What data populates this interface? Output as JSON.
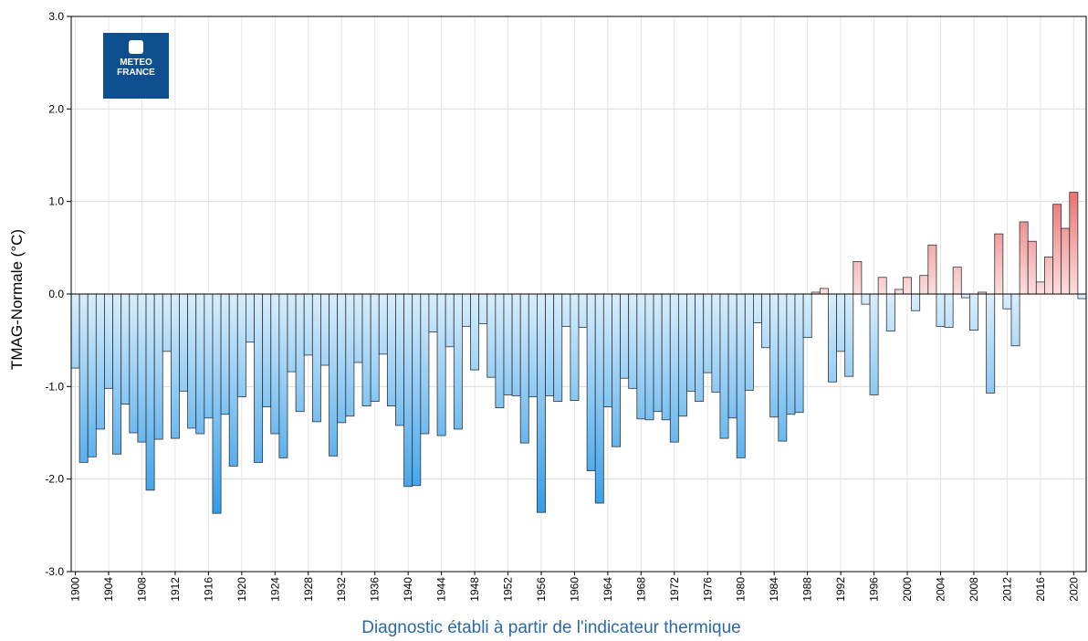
{
  "chart_data": {
    "type": "bar",
    "y_label": "TMAG-Normale (°C)",
    "x": [
      1900,
      1901,
      1902,
      1903,
      1904,
      1905,
      1906,
      1907,
      1908,
      1909,
      1910,
      1911,
      1912,
      1913,
      1914,
      1915,
      1916,
      1917,
      1918,
      1919,
      1920,
      1921,
      1922,
      1923,
      1924,
      1925,
      1926,
      1927,
      1928,
      1929,
      1930,
      1931,
      1932,
      1933,
      1934,
      1935,
      1936,
      1937,
      1938,
      1939,
      1940,
      1941,
      1942,
      1943,
      1944,
      1945,
      1946,
      1947,
      1948,
      1949,
      1950,
      1951,
      1952,
      1953,
      1954,
      1955,
      1956,
      1957,
      1958,
      1959,
      1960,
      1961,
      1962,
      1963,
      1964,
      1965,
      1966,
      1967,
      1968,
      1969,
      1970,
      1971,
      1972,
      1973,
      1974,
      1975,
      1976,
      1977,
      1978,
      1979,
      1980,
      1981,
      1982,
      1983,
      1984,
      1985,
      1986,
      1987,
      1988,
      1989,
      1990,
      1991,
      1992,
      1993,
      1994,
      1995,
      1996,
      1997,
      1998,
      1999,
      2000,
      2001,
      2002,
      2003,
      2004,
      2005,
      2006,
      2007,
      2008,
      2009,
      2010,
      2011,
      2012,
      2013,
      2014,
      2015,
      2016,
      2017,
      2018,
      2019,
      2020,
      2021
    ],
    "values": [
      -0.8,
      -1.82,
      -1.76,
      -1.46,
      -1.02,
      -1.73,
      -1.19,
      -1.5,
      -1.6,
      -2.12,
      -1.57,
      -0.62,
      -1.56,
      -1.05,
      -1.45,
      -1.51,
      -1.34,
      -2.37,
      -1.3,
      -1.86,
      -1.11,
      -0.52,
      -1.82,
      -1.22,
      -1.51,
      -1.77,
      -0.84,
      -1.27,
      -0.66,
      -1.38,
      -0.77,
      -1.75,
      -1.39,
      -1.32,
      -0.74,
      -1.21,
      -1.16,
      -0.65,
      -1.21,
      -1.42,
      -2.08,
      -2.07,
      -1.51,
      -0.41,
      -1.53,
      -0.57,
      -1.46,
      -0.35,
      -0.82,
      -0.32,
      -0.9,
      -1.23,
      -1.09,
      -1.1,
      -1.61,
      -1.11,
      -2.36,
      -1.1,
      -1.16,
      -0.35,
      -1.15,
      -0.36,
      -1.91,
      -2.26,
      -1.22,
      -1.65,
      -0.91,
      -1.02,
      -1.35,
      -1.36,
      -1.27,
      -1.36,
      -1.6,
      -1.32,
      -1.05,
      -1.16,
      -0.85,
      -1.06,
      -1.56,
      -1.34,
      -1.77,
      -1.04,
      -0.31,
      -0.58,
      -1.33,
      -1.59,
      -1.3,
      -1.28,
      -0.47,
      0.02,
      0.06,
      -0.95,
      -0.62,
      -0.89,
      0.35,
      -0.11,
      -1.09,
      0.18,
      -0.4,
      0.05,
      0.18,
      -0.18,
      0.2,
      0.53,
      -0.35,
      -0.36,
      0.29,
      -0.04,
      -0.39,
      0.02,
      -1.07,
      0.65,
      -0.16,
      -0.56,
      0.78,
      0.57,
      0.13,
      0.4,
      0.97,
      0.71,
      1.1,
      -0.05
    ],
    "colors": {
      "negative": [
        "#d9eefc",
        "#2f9cea"
      ],
      "positive": [
        "#fbdede",
        "#e86a6a"
      ]
    },
    "xlim": [
      1899.5,
      2021.5
    ],
    "xticks": [
      1900,
      1904,
      1908,
      1912,
      1916,
      1920,
      1924,
      1928,
      1932,
      1936,
      1940,
      1944,
      1948,
      1952,
      1956,
      1960,
      1964,
      1968,
      1972,
      1976,
      1980,
      1984,
      1988,
      1992,
      1996,
      2000,
      2004,
      2008,
      2012,
      2016,
      2020
    ],
    "ylim": [
      -3,
      3
    ],
    "yticks": [
      {
        "value": -3,
        "label": "-3.0"
      },
      {
        "value": -2,
        "label": "-2.0"
      },
      {
        "value": -1,
        "label": "-1.0"
      },
      {
        "value": 0,
        "label": "0.0"
      },
      {
        "value": 1,
        "label": "1.0"
      },
      {
        "value": 2,
        "label": "2.0"
      },
      {
        "value": 3,
        "label": "3.0"
      }
    ],
    "grid": true
  },
  "logo": {
    "lines": [
      "METEO",
      "FRANCE"
    ]
  },
  "caption": "Diagnostic établi à partir de l'indicateur thermique"
}
